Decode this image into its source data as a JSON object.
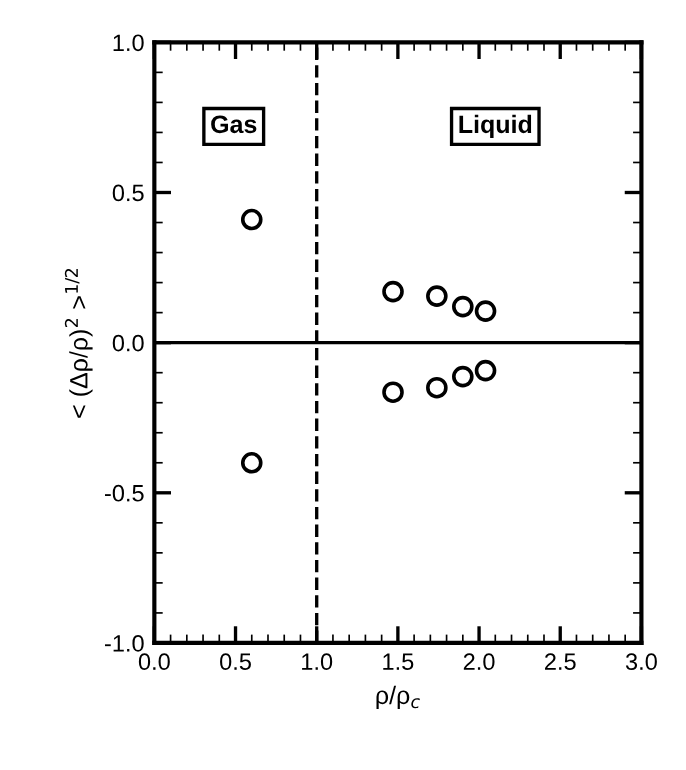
{
  "chart_data": {
    "type": "scatter",
    "xlabel": "ρ/ρ$_{c}$",
    "ylabel": "< (Δρ/ρ)$^{2}$ >$^{1/2}$",
    "annotations": [
      "Gas",
      "Liquid"
    ],
    "series": [
      {
        "color": "#000000",
        "x": [
          0.6,
          1.47,
          1.74,
          1.9,
          2.04,
          0.6,
          1.47,
          1.74,
          1.9,
          2.04
        ],
        "values": [
          0.41,
          0.17,
          0.155,
          0.12,
          0.105,
          -0.4,
          -0.165,
          -0.15,
          -0.113,
          -0.093
        ]
      }
    ],
    "marker": "circle",
    "xlim": [
      0,
      3
    ],
    "ylim": [
      -1,
      1
    ],
    "xticks": [
      {
        "value": 0,
        "label": "0.0"
      },
      0.5,
      {
        "value": 1,
        "label": "1.0"
      },
      1.5,
      {
        "value": 2,
        "label": "2.0"
      },
      2.5,
      {
        "value": 3,
        "label": "3.0"
      }
    ],
    "yticks": [
      {
        "value": -1,
        "label": "-1.0"
      },
      -0.5,
      {
        "value": 0,
        "label": "0.0"
      },
      0.5,
      {
        "value": 1,
        "label": "1.0"
      }
    ],
    "ref_lines": [
      {
        "axis": "x",
        "value": 1,
        "line_style": "dashed"
      },
      {
        "axis": "y",
        "value": 0,
        "line_style": "solid"
      }
    ],
    "grid": false,
    "legend": false
  }
}
